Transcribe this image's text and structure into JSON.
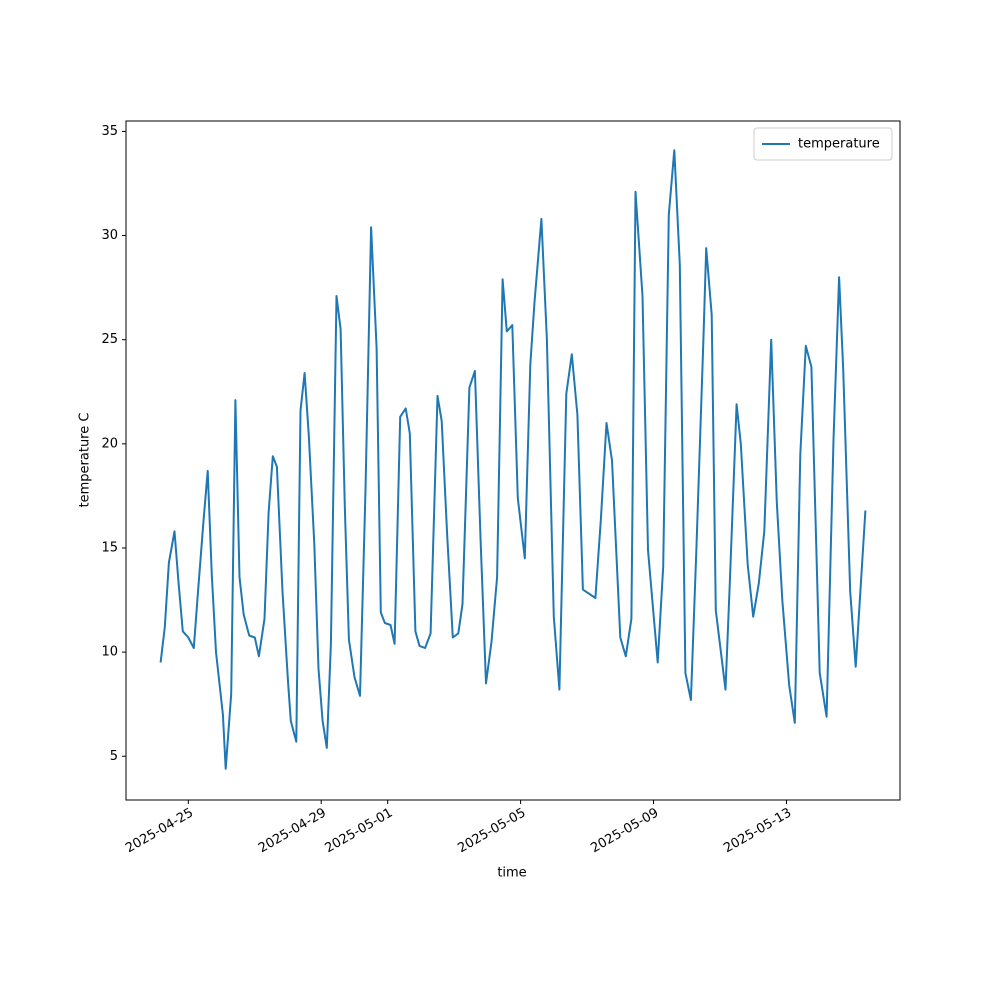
{
  "chart_data": {
    "type": "line",
    "x_label": "time",
    "y_label": "temperature C",
    "x": [
      "2025-04-24T04:00",
      "2025-04-24T07:00",
      "2025-04-24T10:00",
      "2025-04-24T14:00",
      "2025-04-24T17:00",
      "2025-04-24T20:00",
      "2025-04-25T00:00",
      "2025-04-25T04:00",
      "2025-04-25T07:00",
      "2025-04-25T11:00",
      "2025-04-25T14:00",
      "2025-04-25T17:00",
      "2025-04-25T20:00",
      "2025-04-26T01:00",
      "2025-04-26T03:00",
      "2025-04-26T07:00",
      "2025-04-26T10:00",
      "2025-04-26T13:00",
      "2025-04-26T16:00",
      "2025-04-26T20:00",
      "2025-04-27T00:00",
      "2025-04-27T03:00",
      "2025-04-27T07:00",
      "2025-04-27T10:00",
      "2025-04-27T13:00",
      "2025-04-27T16:00",
      "2025-04-27T20:00",
      "2025-04-28T00:00",
      "2025-04-28T02:00",
      "2025-04-28T06:00",
      "2025-04-28T09:00",
      "2025-04-28T12:00",
      "2025-04-28T15:00",
      "2025-04-28T19:00",
      "2025-04-28T22:00",
      "2025-04-29T01:00",
      "2025-04-29T04:00",
      "2025-04-29T07:00",
      "2025-04-29T11:00",
      "2025-04-29T14:00",
      "2025-04-29T17:00",
      "2025-04-29T20:00",
      "2025-04-30T00:00",
      "2025-04-30T04:00",
      "2025-04-30T08:00",
      "2025-04-30T12:00",
      "2025-04-30T16:00",
      "2025-04-30T19:00",
      "2025-04-30T22:00",
      "2025-05-01T02:00",
      "2025-05-01T05:00",
      "2025-05-01T09:00",
      "2025-05-01T13:00",
      "2025-05-01T16:00",
      "2025-05-01T20:00",
      "2025-05-01T23:00",
      "2025-05-02T03:00",
      "2025-05-02T07:00",
      "2025-05-02T12:00",
      "2025-05-02T15:00",
      "2025-05-02T19:00",
      "2025-05-02T23:00",
      "2025-05-03T03:00",
      "2025-05-03T06:00",
      "2025-05-03T11:00",
      "2025-05-03T15:00",
      "2025-05-03T19:00",
      "2025-05-03T23:00",
      "2025-05-04T03:00",
      "2025-05-04T07:00",
      "2025-05-04T11:00",
      "2025-05-04T14:00",
      "2025-05-04T18:00",
      "2025-05-04T22:00",
      "2025-05-05T03:00",
      "2025-05-05T07:00",
      "2025-05-05T10:00",
      "2025-05-05T15:00",
      "2025-05-05T19:00",
      "2025-05-06T00:00",
      "2025-05-06T04:00",
      "2025-05-06T09:00",
      "2025-05-06T13:00",
      "2025-05-06T17:00",
      "2025-05-06T21:00",
      "2025-05-07T06:00",
      "2025-05-07T10:00",
      "2025-05-07T14:00",
      "2025-05-07T18:00",
      "2025-05-08T00:00",
      "2025-05-08T04:00",
      "2025-05-08T08:00",
      "2025-05-08T11:00",
      "2025-05-08T16:00",
      "2025-05-08T20:00",
      "2025-05-09T03:00",
      "2025-05-09T07:00",
      "2025-05-09T11:00",
      "2025-05-09T15:00",
      "2025-05-09T19:00",
      "2025-05-09T23:00",
      "2025-05-10T03:00",
      "2025-05-10T07:00",
      "2025-05-10T12:00",
      "2025-05-10T14:00",
      "2025-05-10T18:00",
      "2025-05-10T21:00",
      "2025-05-11T04:00",
      "2025-05-11T07:00",
      "2025-05-11T12:00",
      "2025-05-11T15:00",
      "2025-05-11T20:00",
      "2025-05-12T00:00",
      "2025-05-12T04:00",
      "2025-05-12T08:00",
      "2025-05-12T13:00",
      "2025-05-12T17:00",
      "2025-05-12T21:00",
      "2025-05-13T02:00",
      "2025-05-13T06:00",
      "2025-05-13T10:00",
      "2025-05-13T14:00",
      "2025-05-13T18:00",
      "2025-05-14T00:00",
      "2025-05-14T05:00",
      "2025-05-14T10:00",
      "2025-05-14T14:00",
      "2025-05-14T17:00",
      "2025-05-14T22:00",
      "2025-05-15T02:00",
      "2025-05-15T09:00"
    ],
    "series": [
      {
        "name": "temperature",
        "color": "#1f77b4",
        "values": [
          9.5,
          11.2,
          14.3,
          15.8,
          13.3,
          11.0,
          10.7,
          10.2,
          12.9,
          16.3,
          18.7,
          13.7,
          10.0,
          7.0,
          4.4,
          8.0,
          22.1,
          13.6,
          11.8,
          10.8,
          10.7,
          9.8,
          11.6,
          16.7,
          19.4,
          18.9,
          12.9,
          8.6,
          6.7,
          5.7,
          21.6,
          23.4,
          20.4,
          15.2,
          9.2,
          6.7,
          5.4,
          10.4,
          27.1,
          25.5,
          17.0,
          10.6,
          8.8,
          7.9,
          17.8,
          30.4,
          24.6,
          11.9,
          11.4,
          11.3,
          10.4,
          21.3,
          21.7,
          20.5,
          11.0,
          10.3,
          10.2,
          10.9,
          22.3,
          21.1,
          15.6,
          10.7,
          10.9,
          12.3,
          22.7,
          23.5,
          15.5,
          8.5,
          10.5,
          13.6,
          27.9,
          25.4,
          25.7,
          17.4,
          14.5,
          23.8,
          26.8,
          30.8,
          25.0,
          11.7,
          8.2,
          22.4,
          24.3,
          21.4,
          13.0,
          12.6,
          16.4,
          21.0,
          19.2,
          10.7,
          9.8,
          11.6,
          32.1,
          27.1,
          14.9,
          9.5,
          14.1,
          31.0,
          34.1,
          28.6,
          9.0,
          7.7,
          15.1,
          25.0,
          29.4,
          26.2,
          12.0,
          8.2,
          13.2,
          21.9,
          20.0,
          14.2,
          11.7,
          13.3,
          15.8,
          25.0,
          17.2,
          12.5,
          8.4,
          6.6,
          19.5,
          24.7,
          23.7,
          9.0,
          6.9,
          20.2,
          28.0,
          23.6,
          12.9,
          9.3,
          16.8
        ]
      }
    ],
    "xlim": [
      "2025-04-23T03:00",
      "2025-05-16T10:00"
    ],
    "xticks": [
      "2025-04-25",
      "2025-04-29",
      "2025-05-01",
      "2025-05-05",
      "2025-05-09",
      "2025-05-13"
    ],
    "ylim": [
      2.9,
      35.5
    ],
    "yticks": [
      5,
      10,
      15,
      20,
      25,
      30,
      35
    ],
    "legend": "upper right",
    "grid": false
  }
}
